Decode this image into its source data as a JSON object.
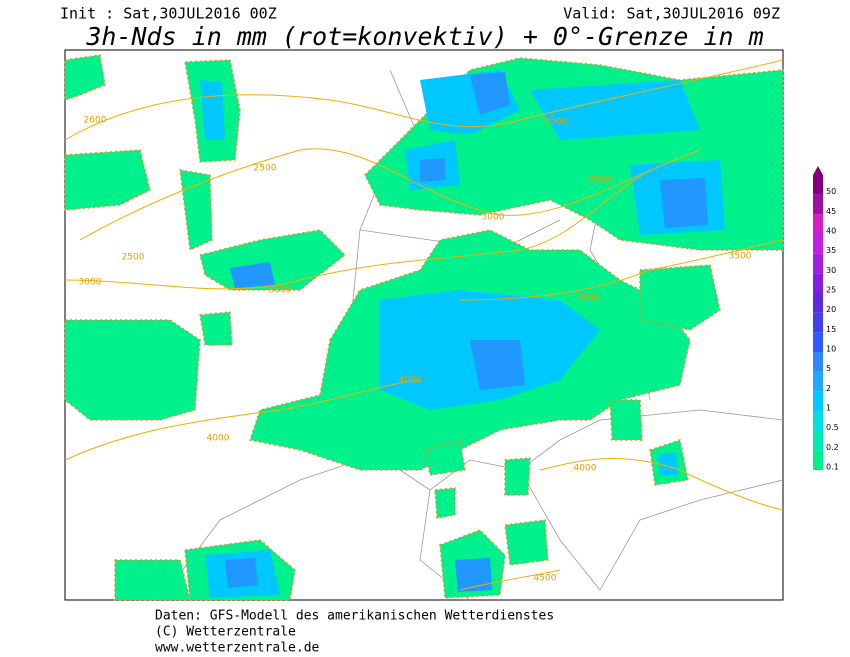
{
  "header": {
    "init": "Init : Sat,30JUL2016 00Z",
    "valid": "Valid: Sat,30JUL2016 09Z",
    "title": "3h-Nds in mm (rot=konvektiv) + 0°-Grenze in m"
  },
  "legend": {
    "levels": [
      0.1,
      0.2,
      0.5,
      1,
      2,
      5,
      10,
      15,
      20,
      25,
      30,
      35,
      40,
      45,
      50
    ],
    "colors": [
      "#00f08c",
      "#00e8b4",
      "#00e0dc",
      "#00c8ff",
      "#20a8ff",
      "#3088ff",
      "#3058ff",
      "#4040f0",
      "#6028e0",
      "#8020e0",
      "#a020e0",
      "#c020e0",
      "#d020c0",
      "#a010a0",
      "#800080"
    ]
  },
  "contour_labels": [
    2600,
    2500,
    2500,
    3000,
    3000,
    3000,
    3000,
    3500,
    3500,
    3500,
    4000,
    4000,
    4000,
    4500
  ],
  "footer": [
    "Daten: GFS-Modell des amerikanischen Wetterdienstes",
    "(C) Wetterzentrale",
    "www.wetterzentrale.de"
  ]
}
